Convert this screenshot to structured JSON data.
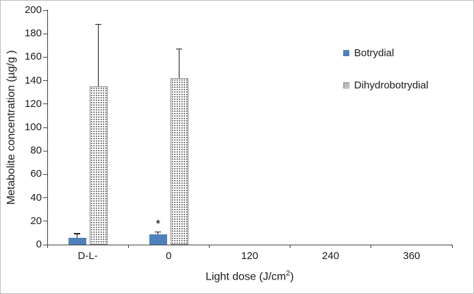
{
  "chart_data": {
    "type": "bar",
    "categories": [
      "D-L-",
      "0",
      "120",
      "240",
      "360"
    ],
    "series": [
      {
        "name": "Botrydial",
        "style": "solid",
        "color": "#4f81bd",
        "values": [
          6,
          9,
          0,
          0,
          0
        ],
        "errors": [
          3.5,
          2,
          0,
          0,
          0
        ]
      },
      {
        "name": "Dihydrobotrydial",
        "style": "dotted",
        "color": "#ffffff",
        "values": [
          135,
          142,
          0,
          0,
          0
        ],
        "errors": [
          53,
          25,
          0,
          0,
          0
        ]
      }
    ],
    "annotations": [
      {
        "text": "*",
        "series": 0,
        "category": 1
      }
    ],
    "title": "",
    "ylabel": "Metabolite concentration (µg/g )",
    "xlabel_prefix": "Light dose (J/cm",
    "xlabel_sup": "2",
    "xlabel_suffix": ")",
    "ylim": [
      0,
      200
    ],
    "ytick_step": 20,
    "grid": false,
    "legend_position": "right-inside"
  }
}
